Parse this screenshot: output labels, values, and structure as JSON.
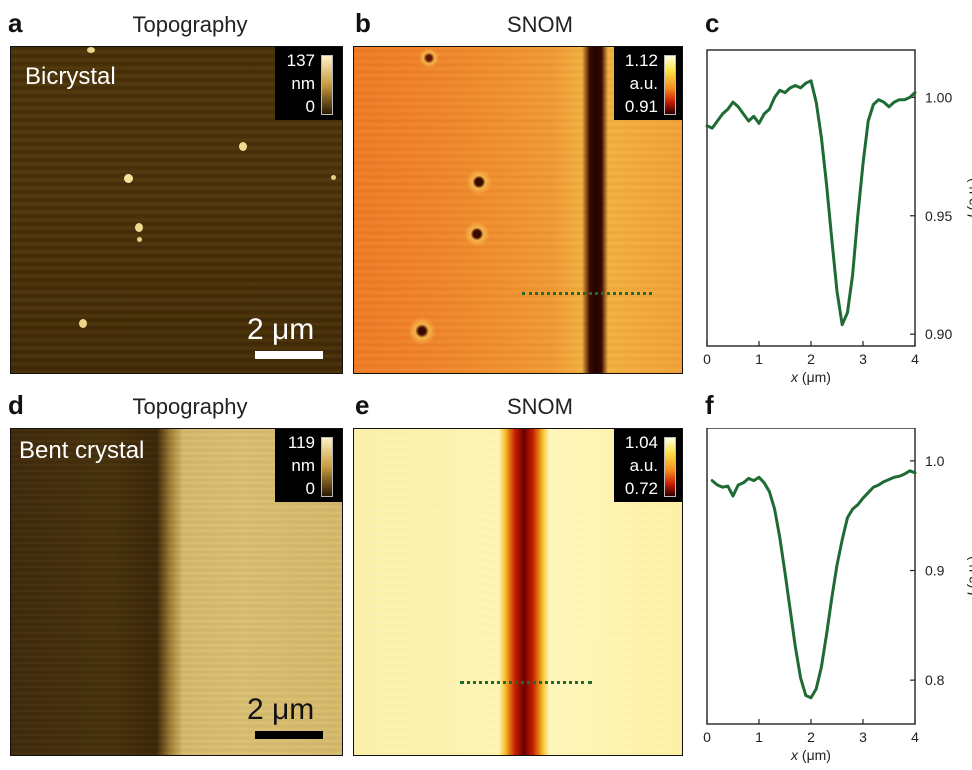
{
  "figure": {
    "panels": {
      "a": {
        "label": "a",
        "title": "Topography",
        "sample": "Bicrystal",
        "colorbar": {
          "max": "137",
          "unit": "nm",
          "min": "0"
        },
        "scalebar": "2 μm"
      },
      "b": {
        "label": "b",
        "title": "SNOM",
        "colorbar": {
          "max": "1.12",
          "unit": "a.u.",
          "min": "0.91"
        }
      },
      "c": {
        "label": "c"
      },
      "d": {
        "label": "d",
        "title": "Topography",
        "sample": "Bent crystal",
        "colorbar": {
          "max": "119",
          "unit": "nm",
          "min": "0"
        },
        "scalebar": "2 μm"
      },
      "e": {
        "label": "e",
        "title": "SNOM",
        "colorbar": {
          "max": "1.04",
          "unit": "a.u.",
          "min": "0.72"
        }
      },
      "f": {
        "label": "f"
      }
    },
    "colors": {
      "line": "#1e6b34",
      "topo_dark": "#3a2607",
      "topo_light": "#d9bd6e",
      "snom_mid": "#f08a2a"
    }
  },
  "chart_data": [
    {
      "panel": "c",
      "type": "line",
      "xlabel": "x (μm)",
      "ylabel": "I (a.u.)",
      "xlim": [
        0,
        4
      ],
      "ylim": [
        0.895,
        1.02
      ],
      "xticks": [
        "0",
        "1",
        "2",
        "3",
        "4"
      ],
      "yticks": [
        "1.00",
        "0.95",
        "0.90"
      ],
      "ytick_values": [
        1.0,
        0.95,
        0.9
      ],
      "x": [
        0,
        0.1,
        0.2,
        0.3,
        0.4,
        0.5,
        0.6,
        0.7,
        0.8,
        0.9,
        1.0,
        1.1,
        1.2,
        1.3,
        1.4,
        1.5,
        1.6,
        1.7,
        1.8,
        1.9,
        2.0,
        2.1,
        2.2,
        2.3,
        2.4,
        2.5,
        2.6,
        2.7,
        2.8,
        2.9,
        3.0,
        3.1,
        3.2,
        3.3,
        3.4,
        3.5,
        3.6,
        3.7,
        3.8,
        3.9,
        4.0
      ],
      "y": [
        0.988,
        0.987,
        0.99,
        0.993,
        0.995,
        0.998,
        0.996,
        0.993,
        0.99,
        0.992,
        0.989,
        0.993,
        0.995,
        1.0,
        1.003,
        1.002,
        1.004,
        1.005,
        1.004,
        1.006,
        1.007,
        0.998,
        0.983,
        0.963,
        0.94,
        0.918,
        0.904,
        0.909,
        0.925,
        0.95,
        0.972,
        0.99,
        0.997,
        0.999,
        0.998,
        0.996,
        0.998,
        0.999,
        0.999,
        1.0,
        1.002
      ]
    },
    {
      "panel": "f",
      "type": "line",
      "xlabel": "x (μm)",
      "ylabel": "I (a.u.)",
      "xlim": [
        0,
        4
      ],
      "ylim": [
        0.76,
        1.03
      ],
      "xticks": [
        "0",
        "1",
        "2",
        "3",
        "4"
      ],
      "yticks": [
        "1.0",
        "0.9",
        "0.8"
      ],
      "ytick_values": [
        1.0,
        0.9,
        0.8
      ],
      "x": [
        0.1,
        0.2,
        0.3,
        0.4,
        0.5,
        0.6,
        0.7,
        0.8,
        0.9,
        1.0,
        1.1,
        1.2,
        1.3,
        1.4,
        1.5,
        1.6,
        1.7,
        1.8,
        1.9,
        2.0,
        2.1,
        2.2,
        2.3,
        2.4,
        2.5,
        2.6,
        2.7,
        2.8,
        2.9,
        3.0,
        3.1,
        3.2,
        3.3,
        3.4,
        3.5,
        3.6,
        3.7,
        3.8,
        3.9,
        4.0
      ],
      "y": [
        0.982,
        0.978,
        0.976,
        0.977,
        0.968,
        0.978,
        0.98,
        0.984,
        0.982,
        0.985,
        0.98,
        0.972,
        0.956,
        0.93,
        0.898,
        0.864,
        0.83,
        0.802,
        0.786,
        0.784,
        0.792,
        0.812,
        0.842,
        0.875,
        0.905,
        0.928,
        0.948,
        0.956,
        0.96,
        0.966,
        0.971,
        0.976,
        0.978,
        0.981,
        0.983,
        0.985,
        0.986,
        0.988,
        0.991,
        0.989
      ]
    }
  ]
}
